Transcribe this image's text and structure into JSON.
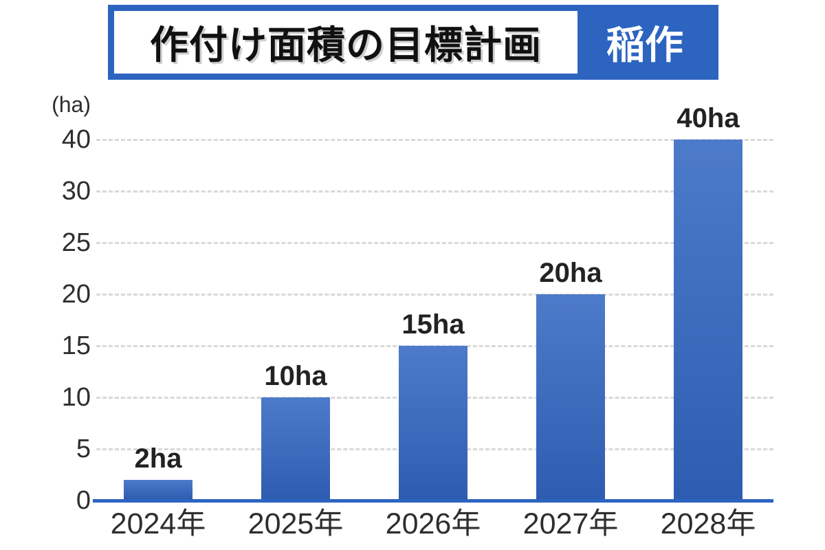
{
  "header": {
    "title": "作付け面積の目標計画",
    "badge": "稲作"
  },
  "chart_data": {
    "type": "bar",
    "title": "作付け面積の目標計画",
    "subtitle_badge": "稲作",
    "unit_label": "(ha)",
    "categories": [
      "2024年",
      "2025年",
      "2026年",
      "2027年",
      "2028年"
    ],
    "values": [
      2,
      10,
      15,
      20,
      40
    ],
    "bar_labels": [
      "2ha",
      "10ha",
      "15ha",
      "20ha",
      "40ha"
    ],
    "series": [
      {
        "name": "作付け面積",
        "values": [
          2,
          10,
          15,
          20,
          40
        ]
      }
    ],
    "xlabel": "",
    "ylabel": "(ha)",
    "y_ticks": [
      0,
      5,
      10,
      15,
      20,
      25,
      30,
      40
    ],
    "y_axis_note": "ticks evenly spaced; 30→40 step compressed (no 35 tick)",
    "grid": "horizontal dashed",
    "legend": "none"
  },
  "colors": {
    "brand_blue": "#2c64c0",
    "title_text": "#111111",
    "badge_text": "#ffffff",
    "bar_gradient_top": "#4d7bca",
    "bar_gradient_bottom": "#2e5cb0",
    "axis_line": "#2c64c0",
    "gridline": "#d9d9d9",
    "label_dark": "#2e2e2e",
    "value_text": "#222222"
  }
}
